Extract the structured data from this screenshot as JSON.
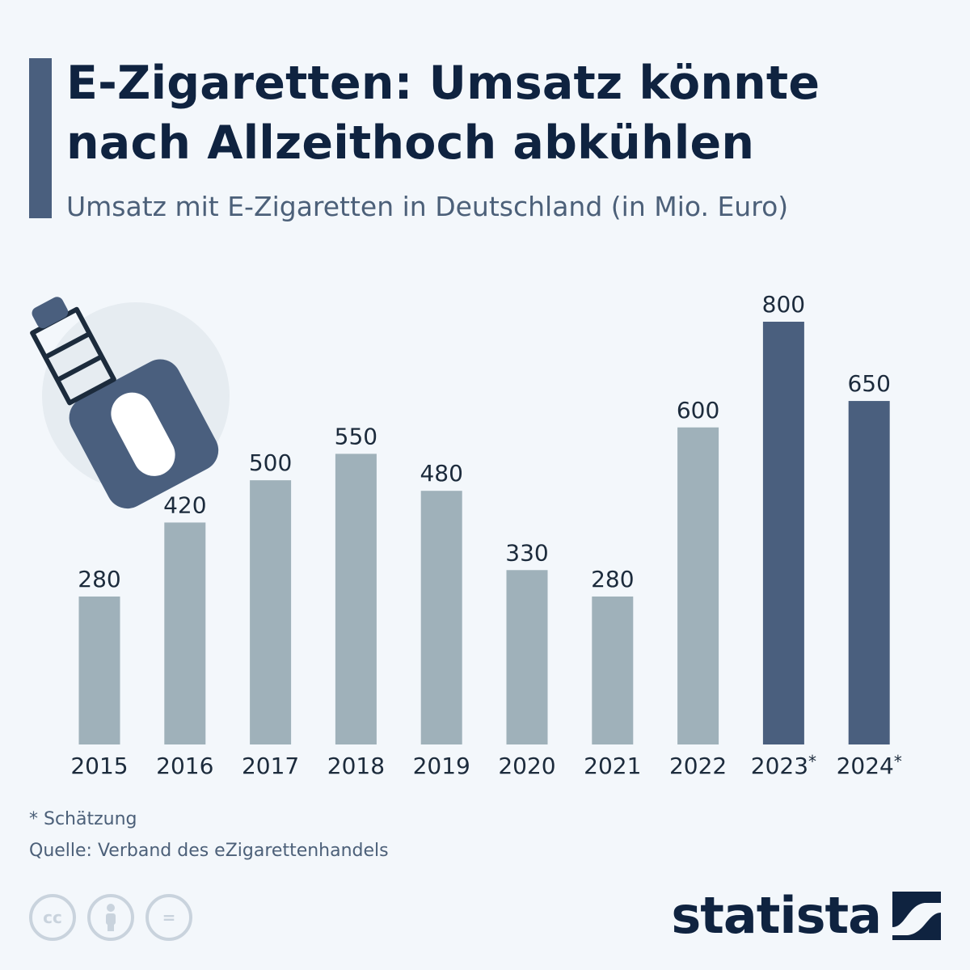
{
  "header": {
    "title": "E-Zigaretten: Umsatz könnte nach Allzeithoch abkühlen",
    "subtitle": "Umsatz mit E-Zigaretten in Deutschland (in Mio. Euro)"
  },
  "chart_data": {
    "type": "bar",
    "title": "E-Zigaretten: Umsatz könnte nach Allzeithoch abkühlen",
    "subtitle": "Umsatz mit E-Zigaretten in Deutschland (in Mio. Euro)",
    "categories": [
      "2015",
      "2016",
      "2017",
      "2018",
      "2019",
      "2020",
      "2021",
      "2022",
      "2023*",
      "2024*"
    ],
    "values": [
      280,
      420,
      500,
      550,
      480,
      330,
      280,
      600,
      800,
      650
    ],
    "estimate": [
      false,
      false,
      false,
      false,
      false,
      false,
      false,
      false,
      true,
      true
    ],
    "ylim": [
      0,
      800
    ],
    "grid": false,
    "xlabel": "",
    "ylabel": "",
    "colors": {
      "actual": "#9fb1ba",
      "estimate": "#4a5f7e",
      "label": "#1c2b3c"
    }
  },
  "footer": {
    "note": "* Schätzung",
    "source": "Quelle: Verband des eZigarettenhandels",
    "license_icons": [
      "cc-icon",
      "attribution-icon",
      "no-derivatives-icon"
    ],
    "license_glyphs": {
      "cc": "cc",
      "nd": "="
    },
    "brand": "statista"
  },
  "illustration": {
    "icon": "e-cigarette-icon",
    "circle_color": "#e6ecf1"
  }
}
